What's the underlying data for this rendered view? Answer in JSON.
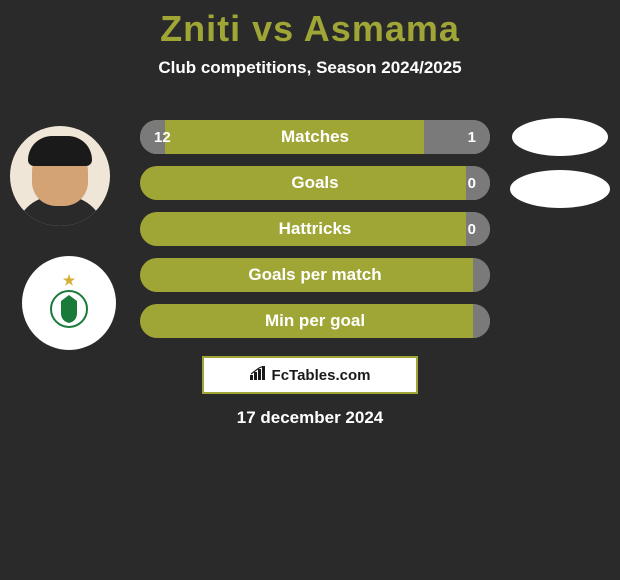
{
  "page_title": "Zniti vs Asmama",
  "subtitle": "Club competitions, Season 2024/2025",
  "date_text": "17 december 2024",
  "brand_label": "FcTables.com",
  "colors": {
    "accent": "#a0a636",
    "bar_gray": "#7a7a7a",
    "text_white": "#ffffff",
    "background": "#2a2a2a"
  },
  "stats": [
    {
      "label": "Matches",
      "left_value": "12",
      "right_value": "1",
      "left_pct": 7,
      "right_pct": 19
    },
    {
      "label": "Goals",
      "left_value": "",
      "right_value": "0",
      "left_pct": 0,
      "right_pct": 7
    },
    {
      "label": "Hattricks",
      "left_value": "",
      "right_value": "0",
      "left_pct": 0,
      "right_pct": 7
    },
    {
      "label": "Goals per match",
      "left_value": "",
      "right_value": "",
      "left_pct": 0,
      "right_pct": 5
    },
    {
      "label": "Min per goal",
      "left_value": "",
      "right_value": "",
      "left_pct": 0,
      "right_pct": 5
    }
  ]
}
